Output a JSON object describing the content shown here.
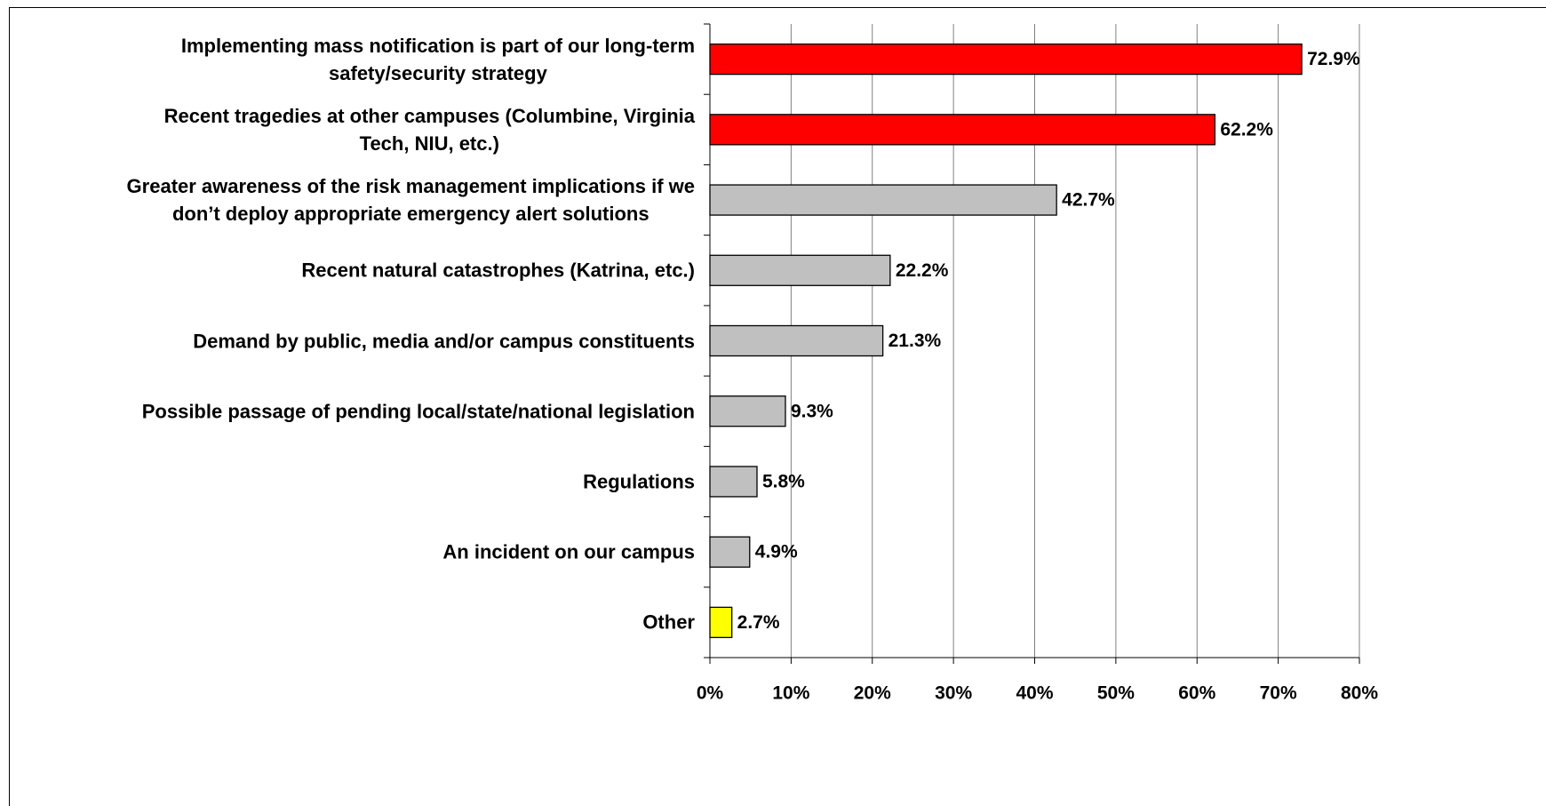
{
  "chart_data": {
    "type": "barh",
    "categories": [
      "Implementing mass notification is part of our long-term\nsafety/security strategy",
      "Recent tragedies at other campuses (Columbine, Virginia\nTech, NIU, etc.)",
      "Greater awareness of the risk management implications if we\ndon’t deploy appropriate emergency alert solutions",
      "Recent natural catastrophes (Katrina, etc.)",
      "Demand by public, media and/or campus constituents",
      "Possible passage of pending local/state/national legislation",
      "Regulations",
      "An incident on our campus",
      "Other"
    ],
    "values": [
      72.9,
      62.2,
      42.7,
      22.2,
      21.3,
      9.3,
      5.8,
      4.9,
      2.7
    ],
    "value_labels": [
      "72.9%",
      "62.2%",
      "42.7%",
      "22.2%",
      "21.3%",
      "9.3%",
      "5.8%",
      "4.9%",
      "2.7%"
    ],
    "colors": [
      "#ff0000",
      "#ff0000",
      "#c0c0c0",
      "#c0c0c0",
      "#c0c0c0",
      "#c0c0c0",
      "#c0c0c0",
      "#c0c0c0",
      "#ffff00"
    ],
    "xlim": [
      0,
      80
    ],
    "xticks": [
      {
        "value": 0,
        "label": "0%"
      },
      {
        "value": 10,
        "label": "10%"
      },
      {
        "value": 20,
        "label": "20%"
      },
      {
        "value": 30,
        "label": "30%"
      },
      {
        "value": 40,
        "label": "40%"
      },
      {
        "value": 50,
        "label": "50%"
      },
      {
        "value": 60,
        "label": "60%"
      },
      {
        "value": 70,
        "label": "70%"
      },
      {
        "value": 80,
        "label": "80%"
      }
    ],
    "grid": true
  }
}
